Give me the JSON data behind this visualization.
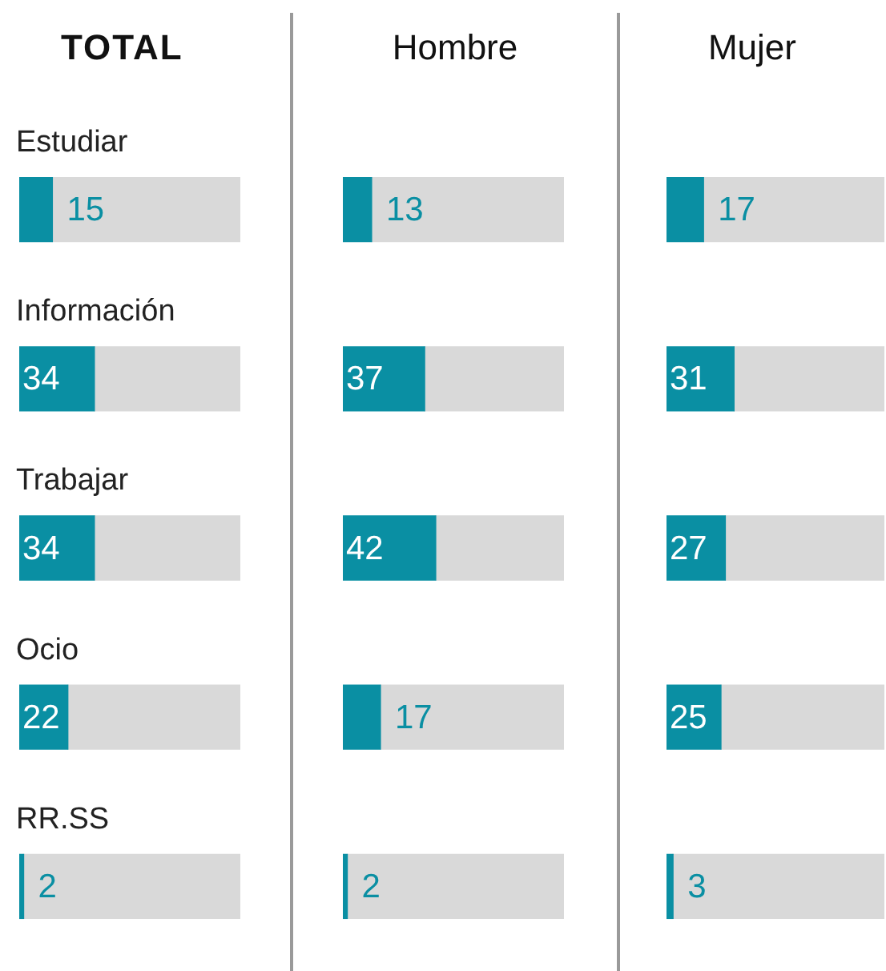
{
  "chart_data": [
    {
      "type": "bar",
      "orientation": "horizontal",
      "stacked": true,
      "title": "TOTAL",
      "categories": [
        "Estudiar",
        "Información",
        "Trabajar",
        "Ocio",
        "RR.SS"
      ],
      "tick_labels": "y",
      "series": [
        {
          "color": "#0a8fa3",
          "values": [
            15,
            34,
            34,
            22,
            2
          ],
          "value_labels": [
            "15",
            "34",
            "34",
            "22",
            "2"
          ]
        },
        {
          "color": "#d9d9d9",
          "values": [
            85,
            66,
            66,
            78,
            98
          ]
        }
      ]
    },
    {
      "type": "bar",
      "orientation": "horizontal",
      "stacked": true,
      "title": "Hombre",
      "categories": [
        null,
        null,
        null,
        null,
        null
      ],
      "tick_labels": false,
      "series": [
        {
          "color": "#0a8fa3",
          "values": [
            13,
            37,
            42,
            17,
            2
          ],
          "value_labels": [
            "13",
            "37",
            "42",
            "17",
            "2"
          ]
        },
        {
          "color": "#d9d9d9",
          "values": [
            87,
            63,
            58,
            83,
            98
          ]
        }
      ]
    },
    {
      "type": "bar",
      "orientation": "horizontal",
      "stacked": true,
      "title": "Mujer",
      "categories": [
        null,
        null,
        null,
        null,
        null
      ],
      "tick_labels": false,
      "series": [
        {
          "color": "#0a8fa3",
          "values": [
            17,
            31,
            27,
            25,
            3
          ],
          "value_labels": [
            "17",
            "31",
            "27",
            "25",
            "3"
          ]
        },
        {
          "color": "#d9d9d9",
          "values": [
            83,
            69,
            73,
            75,
            97
          ]
        }
      ]
    }
  ]
}
